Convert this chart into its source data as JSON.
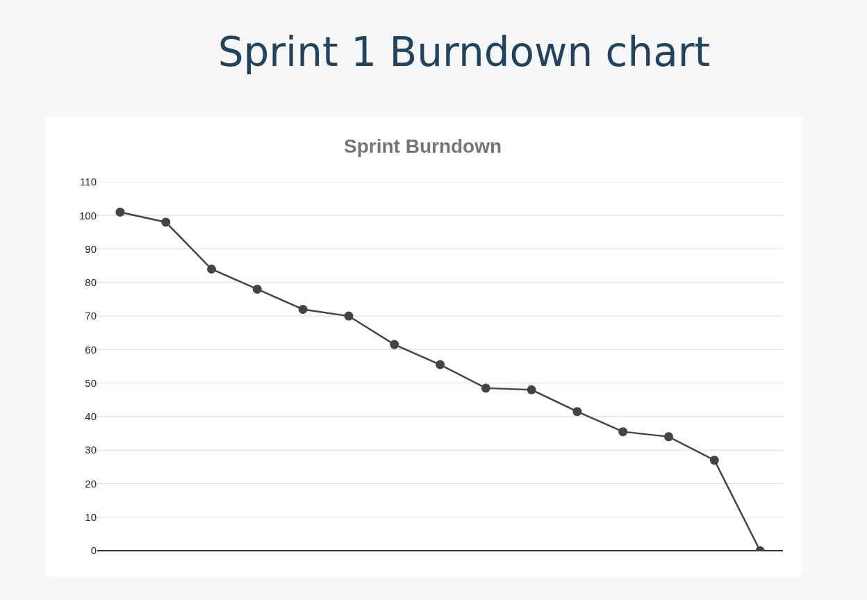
{
  "chart_data": {
    "type": "line",
    "title": "Sprint 1 Burndown chart",
    "subtitle": "Sprint Burndown",
    "categories": [
      null,
      null,
      null,
      null,
      null,
      null,
      null,
      null,
      null,
      null,
      null,
      null,
      null,
      null,
      null
    ],
    "series": [
      {
        "color": "#444444",
        "values": [
          101,
          98,
          84,
          78,
          72,
          70,
          61.5,
          55.5,
          48.5,
          48,
          41.5,
          35.5,
          34,
          27,
          0
        ]
      }
    ],
    "ylim": [
      0,
      110
    ],
    "yticks": [
      0,
      10,
      20,
      30,
      40,
      50,
      60,
      70,
      80,
      90,
      100,
      110
    ],
    "grid": "y",
    "marker": "circle",
    "line_style": "solid",
    "tick_labels": "y"
  }
}
